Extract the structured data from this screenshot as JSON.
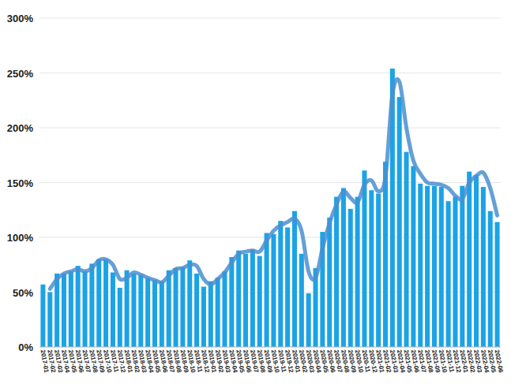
{
  "chart_data": {
    "type": "bar",
    "categories": [
      "2017-01",
      "2017-02",
      "2017-03",
      "2017-04",
      "2017-05",
      "2017-06",
      "2017-07",
      "2017-08",
      "2017-09",
      "2017-10",
      "2017-11",
      "2017-12",
      "2018-01",
      "2018-02",
      "2018-03",
      "2018-04",
      "2018-05",
      "2018-06",
      "2018-07",
      "2018-08",
      "2018-09",
      "2018-10",
      "2018-11",
      "2018-12",
      "2019-01",
      "2019-02",
      "2019-03",
      "2019-04",
      "2019-05",
      "2019-06",
      "2019-07",
      "2019-08",
      "2019-09",
      "2019-10",
      "2019-11",
      "2019-12",
      "2020-01",
      "2020-02",
      "2020-03",
      "2020-04",
      "2020-05",
      "2020-06",
      "2020-07",
      "2020-08",
      "2020-09",
      "2020-10",
      "2020-11",
      "2020-12",
      "2021-01",
      "2021-02",
      "2021-03",
      "2021-04",
      "2021-05",
      "2021-06",
      "2021-07",
      "2021-08",
      "2021-09",
      "2021-10",
      "2021-11",
      "2021-12",
      "2022-01",
      "2022-02",
      "2022-03",
      "2022-04",
      "2022-05",
      "2022-06"
    ],
    "series": [
      {
        "type": "bar",
        "color": "#1ba3e6",
        "values": [
          57,
          50,
          67,
          67,
          69,
          74,
          69,
          76,
          80,
          80,
          68,
          54,
          70,
          67,
          66,
          63,
          61,
          60,
          70,
          72,
          73,
          79,
          67,
          55,
          60,
          63,
          69,
          82,
          88,
          85,
          89,
          83,
          104,
          103,
          115,
          109,
          124,
          85,
          49,
          72,
          105,
          118,
          137,
          145,
          126,
          137,
          161,
          143,
          140,
          169,
          254,
          228,
          178,
          165,
          149,
          147,
          147,
          146,
          133,
          137,
          147,
          160,
          157,
          146,
          124,
          114
        ]
      },
      {
        "type": "line",
        "color": "#4a8fd0",
        "values": [
          null,
          53,
          62,
          67,
          69,
          71,
          69,
          72,
          79,
          80,
          75,
          62,
          63,
          68,
          66,
          63,
          61,
          59,
          65,
          71,
          72,
          75,
          74,
          62,
          57,
          62,
          68,
          77,
          85,
          87,
          88,
          87,
          97,
          106,
          111,
          114,
          117,
          106,
          69,
          63,
          90,
          113,
          130,
          142,
          136,
          132,
          148,
          152,
          142,
          155,
          230,
          242,
          200,
          170,
          158,
          150,
          149,
          148,
          145,
          138,
          135,
          150,
          156,
          159,
          145,
          120
        ]
      }
    ],
    "ylim": [
      0,
      300
    ],
    "yticks": [
      {
        "value": 0,
        "label": "0%"
      },
      {
        "value": 50,
        "label": "50%"
      },
      {
        "value": 100,
        "label": "100%"
      },
      {
        "value": 150,
        "label": "150%"
      },
      {
        "value": 200,
        "label": "200%"
      },
      {
        "value": 250,
        "label": "250%"
      },
      {
        "value": 300,
        "label": "300%"
      }
    ],
    "grid": true
  }
}
